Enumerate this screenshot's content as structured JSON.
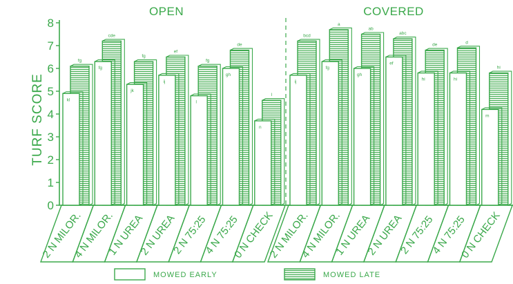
{
  "chart_data": {
    "type": "bar",
    "ylabel": "TURF SCORE",
    "ylim": [
      0,
      8
    ],
    "yticks": [
      "0",
      "1",
      "2",
      "3",
      "4",
      "5",
      "6",
      "7",
      "8"
    ],
    "legend_position": "bottom",
    "legend": [
      {
        "key": "early",
        "label": "MOWED EARLY"
      },
      {
        "key": "late",
        "label": "MOWED LATE"
      }
    ],
    "colors": {
      "line": "#3aa84a",
      "early_fill": "#ffffff",
      "late_fill": "#e3f3e4"
    },
    "panels": [
      {
        "title": "OPEN",
        "categories": [
          "2 N MILOR.",
          "4 N MILOR.",
          "1 N UREA",
          "2 N UREA",
          "2 N 75:25",
          "4 N 75:25",
          "0 N CHECK"
        ],
        "series": [
          {
            "name": "MOWED EARLY",
            "values": [
              4.9,
              6.3,
              5.3,
              5.7,
              4.8,
              6.0,
              3.7
            ],
            "labels": [
              "kl",
              "fg",
              "jk",
              "ij",
              "l",
              "gh",
              "n"
            ]
          },
          {
            "name": "MOWED LATE",
            "values": [
              6.1,
              7.2,
              6.3,
              6.5,
              6.1,
              6.8,
              4.6
            ],
            "labels": [
              "fg",
              "cde",
              "fg",
              "ef",
              "fg",
              "de",
              "l"
            ]
          }
        ]
      },
      {
        "title": "COVERED",
        "categories": [
          "2 N MILOR.",
          "4 N MILOR.",
          "1 N UREA",
          "2 N UREA",
          "2 N 75:25",
          "4 N 75:25",
          "0 N CHECK"
        ],
        "series": [
          {
            "name": "MOWED EARLY",
            "values": [
              5.7,
              6.3,
              6.0,
              6.5,
              5.8,
              5.8,
              4.2
            ],
            "labels": [
              "ij",
              "fg",
              "gh",
              "ef",
              "hi",
              "hi",
              "m"
            ]
          },
          {
            "name": "MOWED LATE",
            "values": [
              7.2,
              7.7,
              7.5,
              7.3,
              6.8,
              6.9,
              5.8
            ],
            "labels": [
              "bcd",
              "a",
              "ab",
              "abc",
              "de",
              "d",
              "hi"
            ]
          }
        ]
      }
    ]
  }
}
